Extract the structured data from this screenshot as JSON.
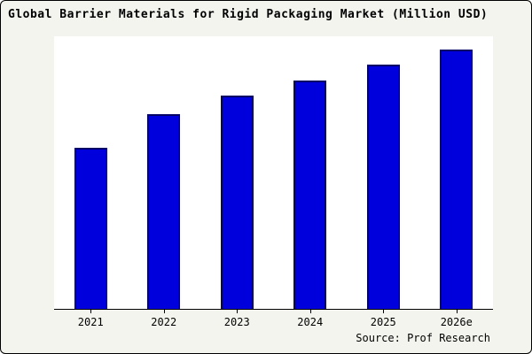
{
  "title": "Global Barrier Materials for Rigid Packaging Market (Million USD)",
  "source": "Source: Prof Research",
  "chart_data": {
    "type": "bar",
    "title": "Global Barrier Materials for Rigid Packaging Market (Million USD)",
    "categories": [
      "2021",
      "2022",
      "2023",
      "2024",
      "2025",
      "2026e"
    ],
    "values": [
      62,
      75,
      82,
      88,
      94,
      100
    ],
    "xlabel": "",
    "ylabel": "",
    "ylim": [
      0,
      105
    ],
    "note": "y-axis has no tick labels in source image; values are estimated as percent of tallest bar",
    "bar_color": "#0000dd",
    "bar_border_color": "#000066",
    "grid": false,
    "legend": "none"
  }
}
